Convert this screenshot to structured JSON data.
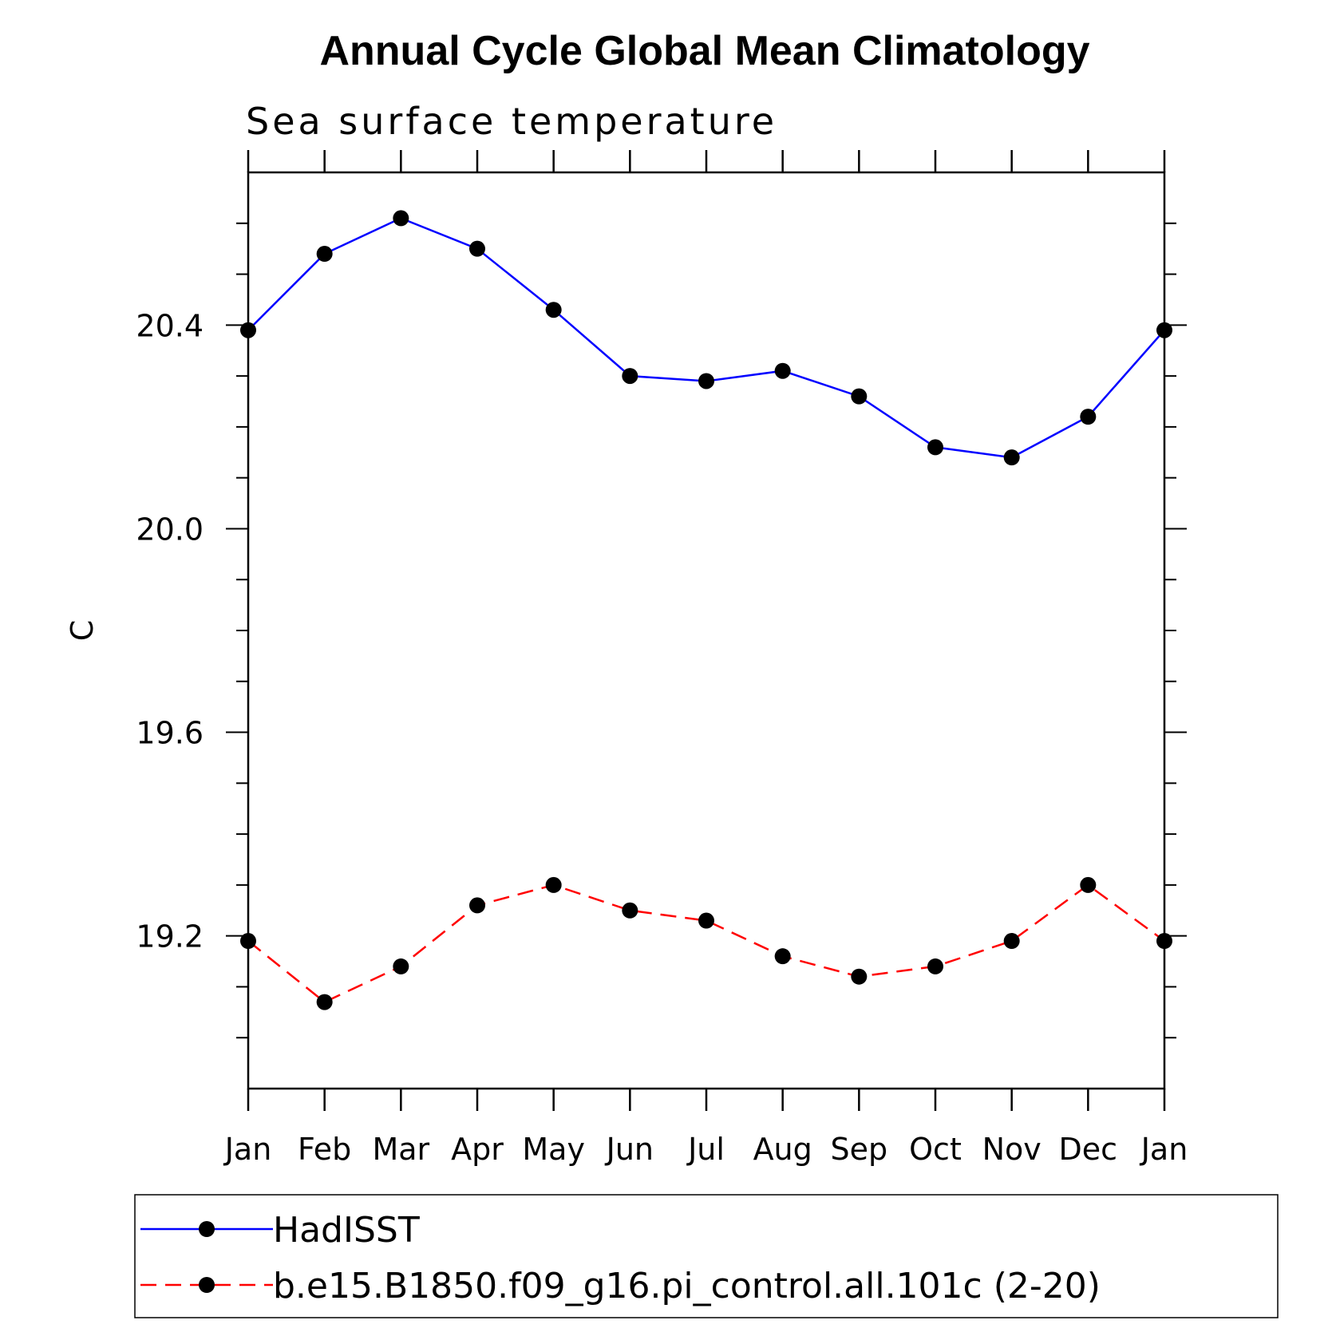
{
  "chart_data": {
    "type": "line",
    "title": "Annual Cycle Global Mean Climatology",
    "subtitle": "Sea surface temperature",
    "ylabel": "C",
    "xlabel": "",
    "categories": [
      "Jan",
      "Feb",
      "Mar",
      "Apr",
      "May",
      "Jun",
      "Jul",
      "Aug",
      "Sep",
      "Oct",
      "Nov",
      "Dec",
      "Jan"
    ],
    "ylim": [
      18.9,
      20.7
    ],
    "yticks": [
      "20.4",
      "20.0",
      "19.6",
      "19.2"
    ],
    "ytick_values": [
      20.4,
      20.0,
      19.6,
      19.2
    ],
    "grid": false,
    "legend_placement": "bottom",
    "series": [
      {
        "name": "HadISST",
        "color": "#0000ff",
        "dash": "solid",
        "marker": "filled-circle",
        "values": [
          20.39,
          20.54,
          20.61,
          20.55,
          20.43,
          20.3,
          20.29,
          20.31,
          20.26,
          20.16,
          20.14,
          20.22,
          20.39
        ]
      },
      {
        "name": "b.e15.B1850.f09_g16.pi_control.all.101c (2-20)",
        "color": "#ff0000",
        "dash": "dashed",
        "marker": "filled-circle",
        "values": [
          19.19,
          19.07,
          19.14,
          19.26,
          19.3,
          19.25,
          19.23,
          19.16,
          19.12,
          19.14,
          19.19,
          19.3,
          19.19
        ]
      }
    ]
  }
}
